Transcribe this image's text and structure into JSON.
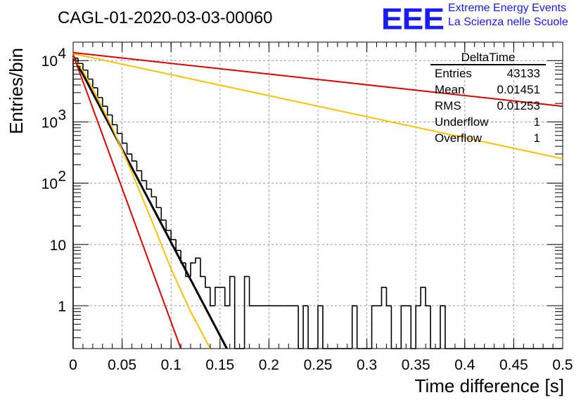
{
  "header": {
    "run_title": "CAGL-01-2020-03-03-00060",
    "logo": "EEE",
    "logo_line1": "Extreme Energy Events",
    "logo_line2": "La Scienza nelle Scuole"
  },
  "stats_box": {
    "name": "DeltaTime",
    "rows": [
      {
        "label": "Entries",
        "value": "43133"
      },
      {
        "label": "Mean",
        "value": "0.01451"
      },
      {
        "label": "RMS",
        "value": "0.01253"
      },
      {
        "label": "Underflow",
        "value": "1"
      },
      {
        "label": "Overflow",
        "value": "1"
      }
    ]
  },
  "chart_data": {
    "type": "histogram",
    "xlabel": "Time difference [s]",
    "ylabel": "Entries/bin",
    "xlim": [
      0,
      0.5
    ],
    "ylim": [
      0.2,
      20000
    ],
    "yscale": "log",
    "grid": true,
    "x_ticks": [
      "0",
      "0.05",
      "0.1",
      "0.15",
      "0.2",
      "0.25",
      "0.3",
      "0.35",
      "0.4",
      "0.45",
      "0.5"
    ],
    "y_ticks": [
      {
        "value": 1,
        "base": "1",
        "exp": ""
      },
      {
        "value": 10,
        "base": "10",
        "exp": ""
      },
      {
        "value": 100,
        "base": "10",
        "exp": "2"
      },
      {
        "value": 1000,
        "base": "10",
        "exp": "3"
      },
      {
        "value": 10000,
        "base": "10",
        "exp": "4"
      }
    ],
    "bin_width": 0.005,
    "histogram_counts": [
      11000,
      9000,
      7000,
      5000,
      3600,
      2500,
      1800,
      1300,
      900,
      650,
      450,
      300,
      230,
      160,
      110,
      80,
      60,
      40,
      25,
      17,
      12,
      8,
      5,
      3,
      5,
      6,
      3,
      2,
      1,
      2,
      2,
      1,
      3,
      0,
      0,
      3,
      1,
      1,
      1,
      1,
      1,
      1,
      1,
      1,
      1,
      1,
      0,
      1,
      0,
      0,
      1,
      0,
      0,
      0,
      0,
      0,
      0,
      1,
      0,
      0,
      0,
      1,
      1,
      2,
      1,
      0,
      0,
      1,
      1,
      0,
      1,
      2,
      1,
      0,
      0,
      1,
      0,
      0,
      0,
      0,
      0,
      0,
      0,
      0,
      0,
      0,
      0,
      0,
      0,
      0,
      0,
      0,
      0,
      0,
      0,
      0,
      0,
      0,
      0,
      0
    ],
    "series": [
      {
        "color": "#000000",
        "points": [
          [
            0,
            12000
          ],
          [
            0.157,
            0.2
          ]
        ]
      },
      {
        "color": "#ffc000",
        "points": [
          [
            0,
            11500
          ],
          [
            0.01,
            6800
          ],
          [
            0.02,
            3500
          ],
          [
            0.04,
            800
          ],
          [
            0.06,
            150
          ],
          [
            0.08,
            25
          ],
          [
            0.1,
            4
          ],
          [
            0.12,
            0.8
          ],
          [
            0.14,
            0.2
          ]
        ]
      },
      {
        "color": "#e00000",
        "points": [
          [
            0,
            12500
          ],
          [
            0.11,
            0.2
          ]
        ]
      },
      {
        "color": "#ffc000",
        "points": [
          [
            0,
            13000
          ],
          [
            0.5,
            250
          ]
        ]
      },
      {
        "color": "#e00000",
        "points": [
          [
            0,
            13500
          ],
          [
            0.5,
            1800
          ]
        ]
      }
    ]
  }
}
